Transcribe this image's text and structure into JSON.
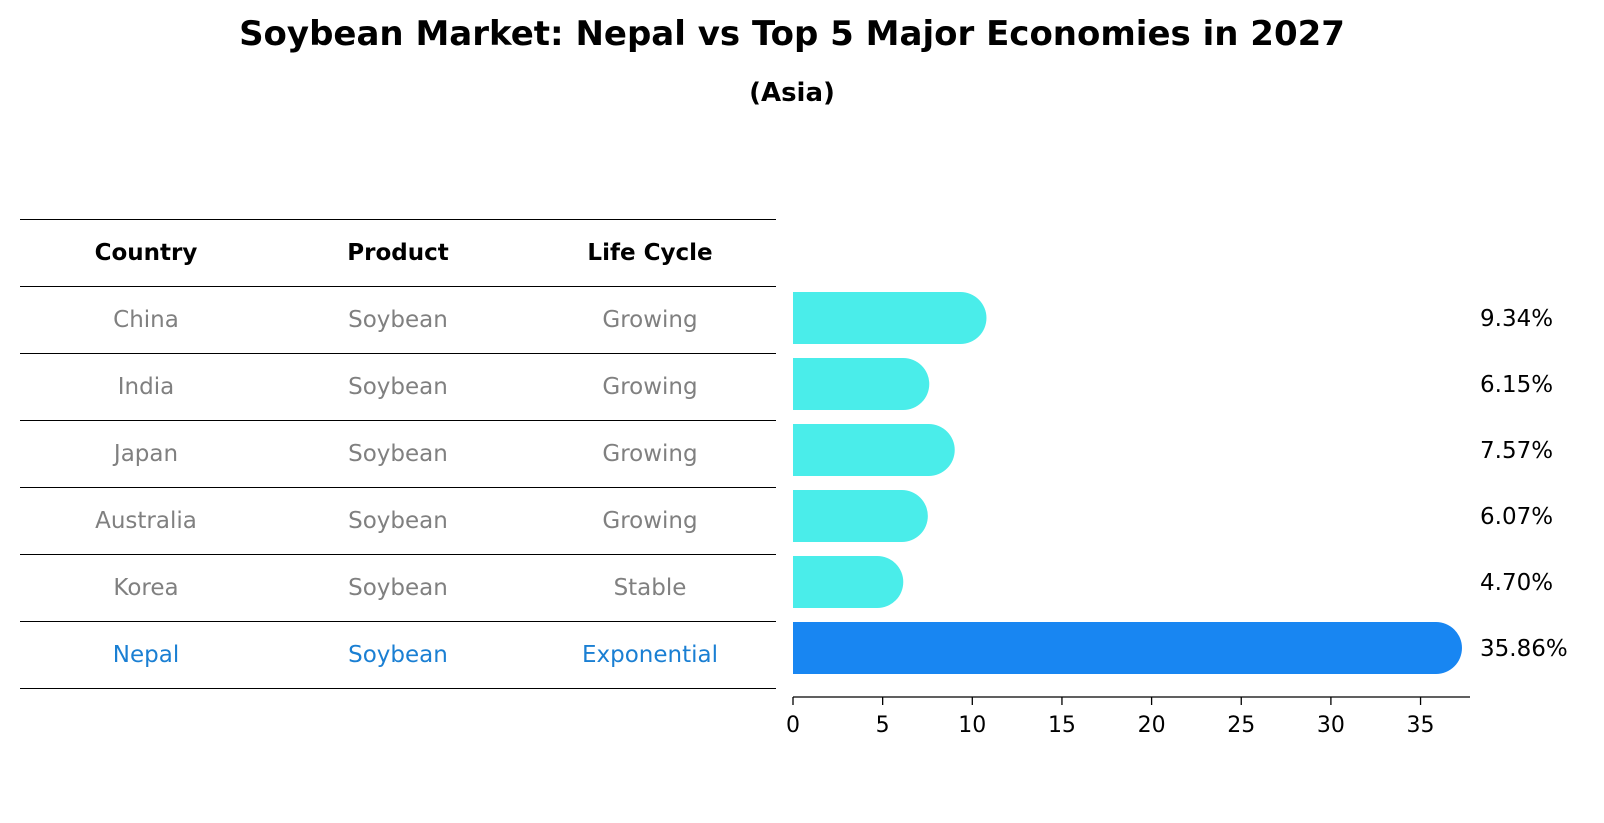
{
  "title": "Soybean Market: Nepal vs Top 5 Major Economies in 2027",
  "subtitle": "(Asia)",
  "table": {
    "headers": [
      "Country",
      "Product",
      "Life Cycle"
    ],
    "rows": [
      {
        "country": "China",
        "product": "Soybean",
        "life_cycle": "Growing"
      },
      {
        "country": "India",
        "product": "Soybean",
        "life_cycle": "Growing"
      },
      {
        "country": "Japan",
        "product": "Soybean",
        "life_cycle": "Growing"
      },
      {
        "country": "Australia",
        "product": "Soybean",
        "life_cycle": "Growing"
      },
      {
        "country": "Korea",
        "product": "Soybean",
        "life_cycle": "Stable"
      },
      {
        "country": "Nepal",
        "product": "Soybean",
        "life_cycle": "Exponential"
      }
    ]
  },
  "colors": {
    "other_bar": "#4AEDEA",
    "highlight_bar": "#1886F2",
    "muted_text": "#808080",
    "highlight_text": "#1A7FD3"
  },
  "chart_data": {
    "type": "bar",
    "orientation": "horizontal",
    "categories": [
      "China",
      "India",
      "Japan",
      "Australia",
      "Korea",
      "Nepal"
    ],
    "values": [
      9.34,
      6.15,
      7.57,
      6.07,
      4.7,
      35.86
    ],
    "labels": [
      "9.34%",
      "6.15%",
      "7.57%",
      "6.07%",
      "4.70%",
      "35.86%"
    ],
    "highlight": "Nepal",
    "xlim": [
      0,
      37.6
    ],
    "xticks": [
      0,
      5,
      10,
      15,
      20,
      25,
      30,
      35
    ],
    "xlabel": "",
    "ylabel": "",
    "grid": false
  }
}
